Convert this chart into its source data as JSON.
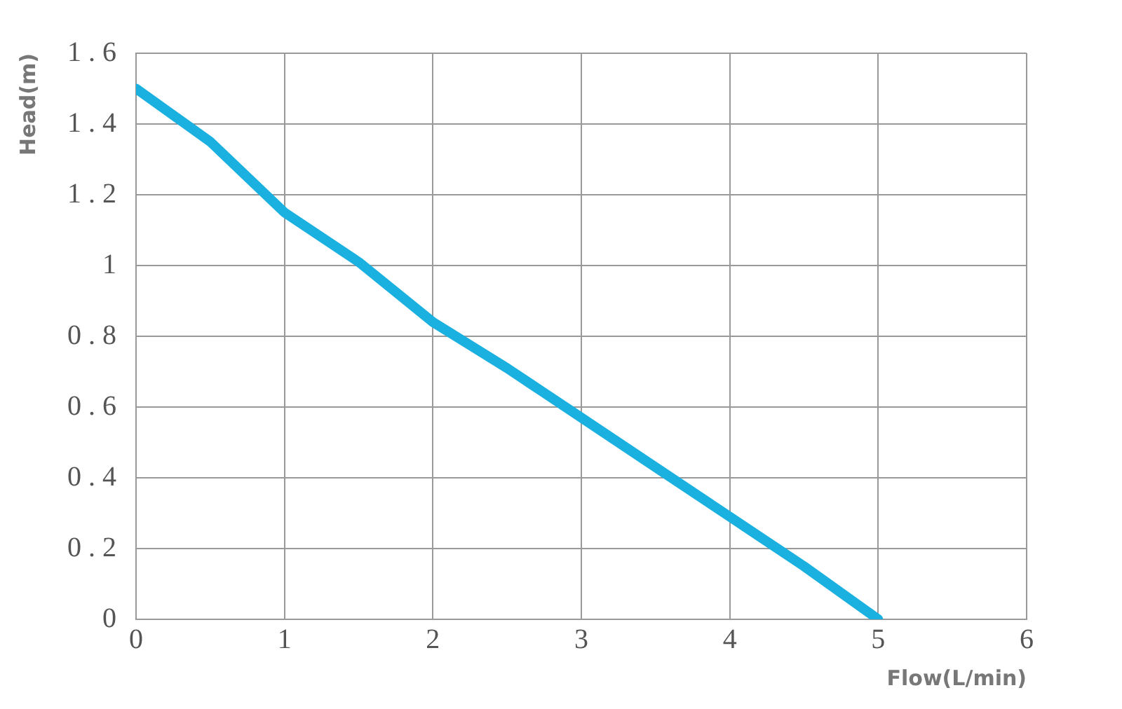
{
  "chart_data": {
    "type": "line",
    "xlabel": "Flow(L/min)",
    "ylabel": "Head(m)",
    "x": [
      0,
      0.5,
      1,
      1.5,
      2,
      2.5,
      3,
      3.5,
      4,
      4.5,
      5
    ],
    "series": [
      {
        "color": "#1ab0e0",
        "values": [
          1.5,
          1.35,
          1.15,
          1.01,
          0.84,
          0.71,
          0.57,
          0.43,
          0.29,
          0.15,
          0
        ]
      }
    ],
    "xlim": [
      0,
      6
    ],
    "xticks": [
      0,
      1,
      2,
      3,
      4,
      5,
      6
    ],
    "ylim": [
      0,
      1.6
    ],
    "yticks": [
      0,
      0.2,
      0.4,
      0.6,
      0.8,
      1,
      1.2,
      1.4,
      1.6
    ],
    "grid": true,
    "legend": false,
    "marker": "none",
    "line_style": "solid"
  }
}
